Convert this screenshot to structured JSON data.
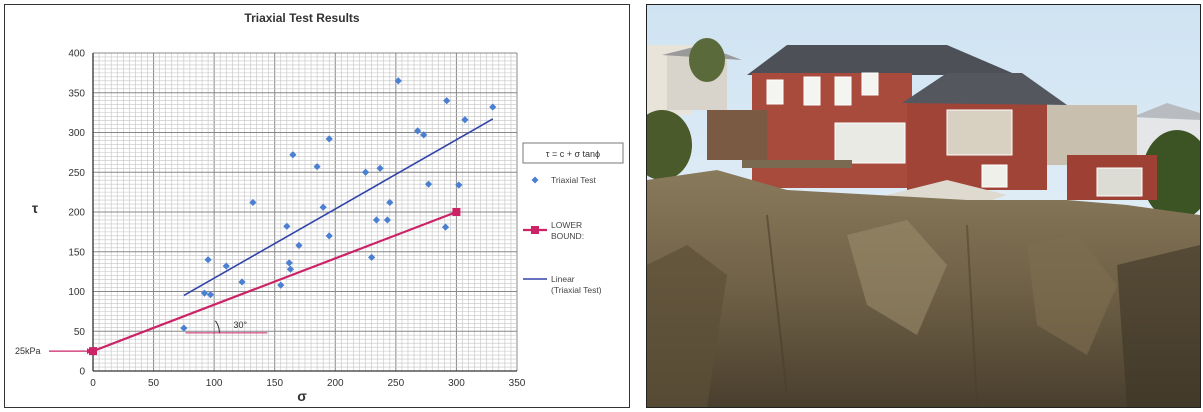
{
  "chart_data": {
    "type": "scatter",
    "title": "Triaxial Test Results",
    "xlabel": "σ",
    "ylabel": "τ",
    "xlim": [
      0,
      350
    ],
    "ylim": [
      0,
      400
    ],
    "xticks": [
      0,
      50,
      100,
      150,
      200,
      250,
      300,
      350
    ],
    "yticks": [
      0,
      50,
      100,
      150,
      200,
      250,
      300,
      350,
      400
    ],
    "grid": true,
    "legend_position": "right",
    "legend_title": "τ = c + σ tanϕ",
    "series": [
      {
        "name": "Triaxial Test",
        "kind": "scatter",
        "color": "#4a7fd1",
        "points": [
          [
            75,
            54
          ],
          [
            92,
            98
          ],
          [
            95,
            140
          ],
          [
            97,
            96
          ],
          [
            110,
            132
          ],
          [
            123,
            112
          ],
          [
            132,
            212
          ],
          [
            155,
            108
          ],
          [
            160,
            182
          ],
          [
            162,
            136
          ],
          [
            163,
            128
          ],
          [
            165,
            272
          ],
          [
            170,
            158
          ],
          [
            185,
            257
          ],
          [
            190,
            206
          ],
          [
            195,
            170
          ],
          [
            195,
            292
          ],
          [
            225,
            250
          ],
          [
            230,
            143
          ],
          [
            234,
            190
          ],
          [
            237,
            255
          ],
          [
            243,
            190
          ],
          [
            245,
            212
          ],
          [
            252,
            365
          ],
          [
            268,
            302
          ],
          [
            273,
            297
          ],
          [
            277,
            235
          ],
          [
            291,
            181
          ],
          [
            292,
            340
          ],
          [
            302,
            234
          ],
          [
            307,
            316
          ],
          [
            330,
            332
          ]
        ]
      },
      {
        "name": "LOWER BOUND:",
        "name_lines": [
          "LOWER",
          "BOUND:"
        ],
        "kind": "line-marker",
        "color": "#cc2266",
        "points": [
          [
            0,
            25
          ],
          [
            300,
            200
          ]
        ]
      },
      {
        "name": "Linear (Triaxial Test)",
        "name_lines": [
          "Linear",
          "(Triaxial Test)"
        ],
        "kind": "line",
        "color": "#3344aa",
        "points": [
          [
            75,
            95
          ],
          [
            330,
            317
          ]
        ]
      }
    ],
    "annotations": [
      {
        "text": "25kPa",
        "x": 0,
        "y": 25
      },
      {
        "text": "30°",
        "x": 40,
        "y": 48
      }
    ]
  },
  "photo": {
    "subject": "landslide-scarp-with-damaged-house"
  }
}
